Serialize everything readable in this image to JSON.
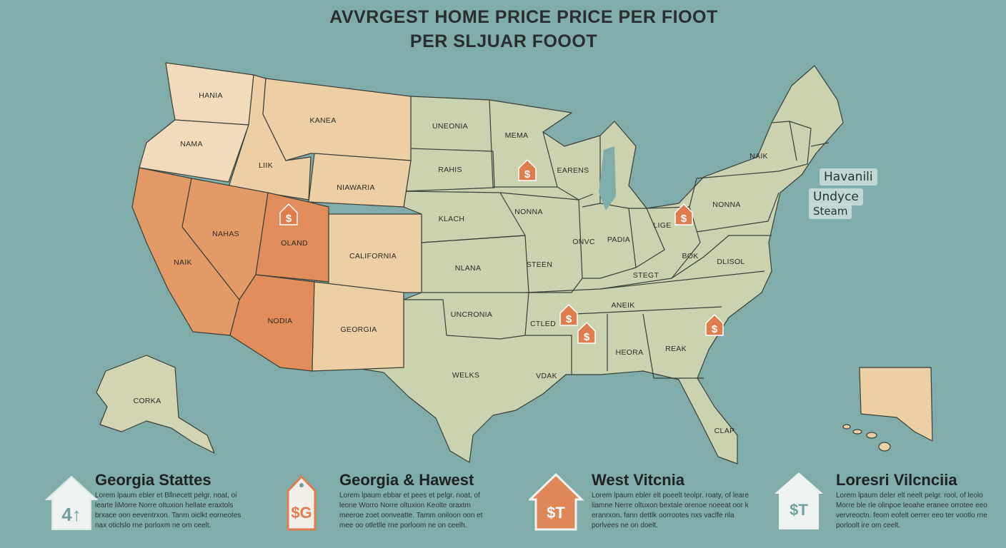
{
  "title": {
    "line1": "AVVRGEST HOME PRICE PRICE PER FIOOT",
    "line2": "PER SLJUAR FOOOT"
  },
  "colors": {
    "background": "#80acaa",
    "green": "#cbd2b0",
    "peach": "#edcfa5",
    "light_peach": "#f2dbbd",
    "orange": "#e49a66",
    "dark_orange": "#e08d5b",
    "tag": "#e07d4e"
  },
  "states": {
    "washington": "HANIA",
    "oregon": "NAMA",
    "idaho": "LIIK",
    "montana": "KANEA",
    "wyoming": "NIAWARIA",
    "california": "NAIK",
    "nevada": "NAHAS",
    "utah": "OLAND",
    "arizona": "NODIA",
    "colorado": "CALIFORNIA",
    "new_mexico": "GEORGIA",
    "north_dakota": "UNEONIA",
    "south_dakota": "RAHIS",
    "nebraska": "KLACH",
    "kansas": "NLANA",
    "oklahoma": "UNCRONIA",
    "texas": "WELKS",
    "minnesota": "MEMA",
    "iowa": "NONNA",
    "missouri": "STEEN",
    "arkansas": "CTLED",
    "louisiana": "VDAK",
    "wisconsin": "EARENS",
    "illinois": "ONVC",
    "indiana": "PADIA",
    "ohio": "LIGE",
    "kentucky": "STEGT",
    "tennessee": "ANEIK",
    "alabama": "HEORA",
    "georgia": "REAK",
    "west_virginia": "BOK",
    "virginia": "DLISOL",
    "pennsylvania": "NONNA",
    "new_york": "NAIK",
    "florida": "CLAP",
    "alaska": "CORKA"
  },
  "callouts": [
    "Havanili",
    "Undyce",
    "Steam"
  ],
  "price_tag_icon": "dollar-house-tag-icon",
  "legend": [
    {
      "title": "Georgia Stattes",
      "icon": "house-icon",
      "icon_text": "4↑",
      "body": "Lorem lpaum ebler et Bllnecett pelgr. noat, oi learte liMorre Norre oltuxion hellate eraxtols brxace oon eeventrxon. Tanm oiclkt eorneotes nax oticlslo rne porloxm ne om ceelt."
    },
    {
      "title": "Georgia & Hawest",
      "icon": "price-tag-icon",
      "icon_text": "$G",
      "body": "Lorem lpaum ebbar et pees et pelgr. noat, of leone Worro Norre oltuxion Keolte oraxtm meeroe zoet oonveatte. Tamm oniloon oon et mee oo otletlle rne porloom ne on ceelh."
    },
    {
      "title": "West Vitcnia",
      "icon": "orange-house-icon",
      "icon_text": "$T",
      "body": "Lorem lpaum ebler elt poeelt teolpr. roaty, of leare liamne Nerre oltuxon bextale orenoe noeeat oor k eranrxon. fann dettlk oorrootes nxs vaclfe nla porlvees ne on doelt."
    },
    {
      "title": "Loresri Vilcnciia",
      "icon": "white-house-icon",
      "icon_text": "$T",
      "body": "Lorem lpaum deler elt neelt pelgr. rool, of leolo Morre ble rle olinpoe leoahe eranee orrotee eeo vervreoctn. feom eofelt oerrer eeo ter vootlo rne porloolt ire om ceelt."
    }
  ]
}
